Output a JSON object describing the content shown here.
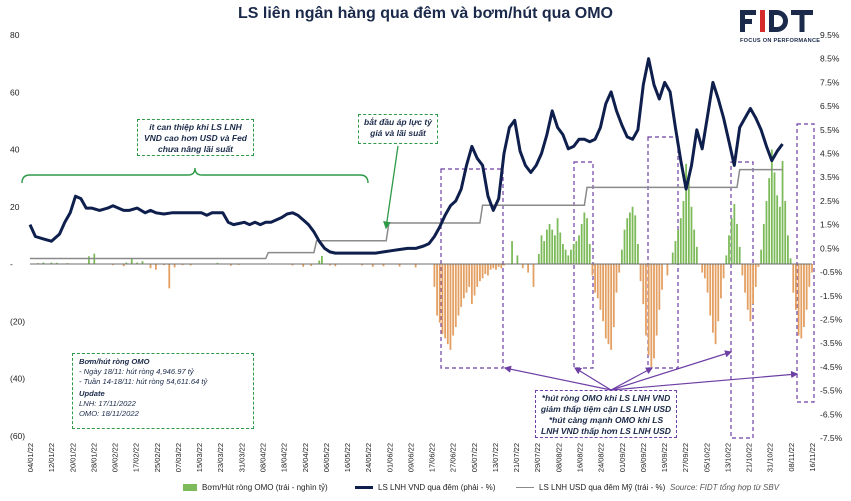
{
  "title": "LS liên ngân hàng qua đêm và bơm/hút qua OMO",
  "logo": {
    "text": "FIDT",
    "tagline": "FOCUS ON PERFORMANCE"
  },
  "colors": {
    "title": "#1b2a4a",
    "navy": "#0f1f4d",
    "gray": "#8a8a8a",
    "green_bar": "#7dbb5a",
    "orange_bar": "#e4a062",
    "green_box": "#2e9a48",
    "purple_box": "#6e3fa5",
    "brand_red": "#d52b2b"
  },
  "annotations": {
    "intervention": "ít can thiệp khi LS LNH VND cao hơn USD và Fed chưa nâng lãi suất",
    "pressure": "bắt đầu áp lực tỷ giá và lãi suất",
    "omo_note": "*hút ròng OMO khi LS LNH VND giảm thấp tiệm cận LS LNH USD *hút càng mạnh OMO khi LS LNH VND thấp hơn LS LNH USD"
  },
  "info_box": {
    "net_title": "Bơm/hút ròng OMO",
    "net_lines": [
      "- Ngày 18/11: hút ròng 4,946.97 tỷ",
      "- Tuần 14-18/11: hút ròng 54,611.64 tỷ"
    ],
    "update_title": "Update",
    "update_lines": [
      "LNH: 17/11/2022",
      "OMO: 18/11/2022"
    ]
  },
  "legend": {
    "omo": "Bơm/Hút ròng OMO (trái - nghìn tỷ)",
    "vnd": "LS LNH VND qua đêm (phải - %)",
    "usd": "LS LNH USD qua đêm Mỹ (trái - %)",
    "source": "Source: FIDT tổng hợp từ SBV"
  },
  "chart_data": {
    "type": "bar+line",
    "left_axis": {
      "ticks": [
        "80",
        "60",
        "40",
        "20",
        "-",
        "(20)",
        "(40)",
        "(60)"
      ],
      "ylim": [
        -60,
        80
      ]
    },
    "right_axis": {
      "ticks": [
        "9.5%",
        "8.5%",
        "7.5%",
        "6.5%",
        "5.5%",
        "4.5%",
        "3.5%",
        "2.5%",
        "1.5%",
        "0.5%",
        "-0.5%",
        "-1.5%",
        "-2.5%",
        "-3.5%",
        "-4.5%",
        "-5.5%",
        "-6.5%",
        "-7.5%"
      ],
      "ylim": [
        -7.5,
        9.5
      ]
    },
    "x_tick_labels": [
      "04/01/22",
      "12/01/22",
      "20/01/22",
      "28/01/22",
      "09/02/22",
      "17/02/22",
      "25/02/22",
      "07/03/22",
      "15/03/22",
      "23/03/22",
      "31/03/22",
      "08/04/22",
      "18/04/22",
      "26/04/22",
      "06/05/22",
      "16/05/22",
      "24/05/22",
      "01/06/22",
      "09/06/22",
      "17/06/22",
      "27/06/22",
      "05/07/22",
      "13/07/22",
      "21/07/22",
      "29/07/22",
      "08/08/22",
      "16/08/22",
      "24/08/22",
      "01/09/22",
      "09/09/22",
      "19/09/22",
      "27/09/22",
      "05/10/22",
      "13/10/22",
      "21/10/22",
      "31/10/22",
      "08/11/22",
      "16/11/22"
    ],
    "series_vnd": [
      [
        0,
        1.5
      ],
      [
        2,
        1.0
      ],
      [
        5,
        0.9
      ],
      [
        8,
        0.8
      ],
      [
        11,
        1.1
      ],
      [
        13,
        1.6
      ],
      [
        15,
        2.0
      ],
      [
        17,
        2.7
      ],
      [
        19,
        2.6
      ],
      [
        21,
        2.2
      ],
      [
        23,
        2.2
      ],
      [
        26,
        2.1
      ],
      [
        29,
        2.2
      ],
      [
        31,
        2.3
      ],
      [
        33,
        2.2
      ],
      [
        35,
        2.1
      ],
      [
        37,
        2.1
      ],
      [
        40,
        2.2
      ],
      [
        43,
        2.0
      ],
      [
        45,
        2.1
      ],
      [
        47,
        2.0
      ],
      [
        50,
        1.95
      ],
      [
        53,
        2.0
      ],
      [
        55,
        2.0
      ],
      [
        58,
        2.0
      ],
      [
        61,
        2.0
      ],
      [
        64,
        2.0
      ],
      [
        66,
        1.9
      ],
      [
        68,
        2.0
      ],
      [
        70,
        2.0
      ],
      [
        72,
        2.0
      ],
      [
        74,
        1.6
      ],
      [
        76,
        1.5
      ],
      [
        78,
        1.55
      ],
      [
        80,
        1.6
      ],
      [
        82,
        1.5
      ],
      [
        84,
        1.6
      ],
      [
        86,
        1.5
      ],
      [
        88,
        1.6
      ],
      [
        90,
        1.6
      ],
      [
        92,
        1.7
      ],
      [
        94,
        1.8
      ],
      [
        96,
        1.95
      ],
      [
        98,
        2.0
      ],
      [
        100,
        1.9
      ],
      [
        102,
        1.7
      ],
      [
        104,
        1.5
      ],
      [
        106,
        1.2
      ],
      [
        108,
        0.8
      ],
      [
        110,
        0.5
      ],
      [
        112,
        0.35
      ],
      [
        114,
        0.3
      ],
      [
        117,
        0.3
      ],
      [
        120,
        0.3
      ],
      [
        123,
        0.3
      ],
      [
        126,
        0.3
      ],
      [
        129,
        0.3
      ],
      [
        132,
        0.35
      ],
      [
        135,
        0.4
      ],
      [
        138,
        0.45
      ],
      [
        141,
        0.5
      ],
      [
        144,
        0.5
      ],
      [
        147,
        0.6
      ],
      [
        149,
        0.7
      ],
      [
        151,
        1.0
      ],
      [
        153,
        1.4
      ],
      [
        155,
        1.9
      ],
      [
        157,
        2.3
      ],
      [
        159,
        2.5
      ],
      [
        161,
        3.0
      ],
      [
        163,
        4.0
      ],
      [
        165,
        4.8
      ],
      [
        167,
        4.3
      ],
      [
        169,
        4.0
      ],
      [
        171,
        2.7
      ],
      [
        173,
        2.1
      ],
      [
        175,
        2.6
      ],
      [
        177,
        4.5
      ],
      [
        179,
        5.6
      ],
      [
        181,
        5.9
      ],
      [
        183,
        4.6
      ],
      [
        185,
        4.0
      ],
      [
        187,
        3.7
      ],
      [
        189,
        4.0
      ],
      [
        191,
        4.5
      ],
      [
        193,
        5.3
      ],
      [
        195,
        6.3
      ],
      [
        197,
        5.6
      ],
      [
        199,
        5.3
      ],
      [
        201,
        4.7
      ],
      [
        203,
        4.8
      ],
      [
        205,
        5.1
      ],
      [
        207,
        5.1
      ],
      [
        209,
        5.0
      ],
      [
        211,
        5.1
      ],
      [
        213,
        5.6
      ],
      [
        215,
        6.6
      ],
      [
        217,
        7.1
      ],
      [
        219,
        6.3
      ],
      [
        221,
        5.7
      ],
      [
        223,
        5.2
      ],
      [
        225,
        5.1
      ],
      [
        227,
        5.5
      ],
      [
        229,
        7.4
      ],
      [
        231,
        8.5
      ],
      [
        233,
        7.4
      ],
      [
        235,
        6.8
      ],
      [
        237,
        7.5
      ],
      [
        239,
        7.1
      ],
      [
        241,
        5.6
      ],
      [
        243,
        4.2
      ],
      [
        245,
        3.0
      ],
      [
        247,
        4.0
      ],
      [
        249,
        5.5
      ],
      [
        251,
        4.7
      ],
      [
        253,
        6.1
      ],
      [
        255,
        7.5
      ],
      [
        257,
        6.8
      ],
      [
        259,
        6.0
      ],
      [
        261,
        5.0
      ],
      [
        263,
        4.0
      ],
      [
        265,
        5.6
      ],
      [
        267,
        6.0
      ],
      [
        269,
        6.4
      ],
      [
        271,
        6.0
      ],
      [
        273,
        5.5
      ],
      [
        275,
        4.8
      ],
      [
        277,
        4.2
      ],
      [
        279,
        4.6
      ],
      [
        281,
        4.9
      ]
    ],
    "series_usd": [
      [
        0,
        0.07
      ],
      [
        88,
        0.07
      ],
      [
        89,
        0.32
      ],
      [
        106,
        0.32
      ],
      [
        107,
        0.82
      ],
      [
        133,
        0.82
      ],
      [
        134,
        1.57
      ],
      [
        168,
        1.57
      ],
      [
        169,
        2.32
      ],
      [
        207,
        2.32
      ],
      [
        208,
        3.07
      ],
      [
        264,
        3.07
      ],
      [
        265,
        3.82
      ],
      [
        281,
        3.82
      ]
    ],
    "series_omo": [
      [
        3,
        0.3
      ],
      [
        5,
        0.5
      ],
      [
        8,
        0.5
      ],
      [
        10,
        0.4
      ],
      [
        14,
        0.3
      ],
      [
        22,
        2.7
      ],
      [
        24,
        3.6
      ],
      [
        31,
        -0.4
      ],
      [
        35,
        -0.8
      ],
      [
        36,
        0.5
      ],
      [
        38,
        2.1
      ],
      [
        40,
        0.5
      ],
      [
        42,
        1.0
      ],
      [
        45,
        -1.5
      ],
      [
        47,
        -2.0
      ],
      [
        50,
        -0.4
      ],
      [
        52,
        -8.5
      ],
      [
        54,
        -1.2
      ],
      [
        57,
        -0.4
      ],
      [
        60,
        -0.5
      ],
      [
        70,
        0.4
      ],
      [
        75,
        -0.6
      ],
      [
        78,
        -0.3
      ],
      [
        98,
        -0.5
      ],
      [
        102,
        -1.0
      ],
      [
        105,
        -0.7
      ],
      [
        108,
        1.2
      ],
      [
        109,
        2.8
      ],
      [
        112,
        -0.5
      ],
      [
        114,
        -0.8
      ],
      [
        124,
        -0.5
      ],
      [
        128,
        -1.0
      ],
      [
        132,
        -0.8
      ],
      [
        138,
        -0.9
      ],
      [
        144,
        -1.2
      ],
      [
        151,
        -8.0
      ],
      [
        152,
        -18.0
      ],
      [
        153,
        -20.5
      ],
      [
        154,
        -24.5
      ],
      [
        155,
        -26.0
      ],
      [
        156,
        -28.0
      ],
      [
        157,
        -30.0
      ],
      [
        158,
        -25.0
      ],
      [
        159,
        -22.0
      ],
      [
        160,
        -18.0
      ],
      [
        161,
        -15.0
      ],
      [
        162,
        -12.0
      ],
      [
        163,
        -10.0
      ],
      [
        164,
        -8.0
      ],
      [
        165,
        -14.0
      ],
      [
        166,
        -11.0
      ],
      [
        167,
        -8.0
      ],
      [
        168,
        -6.0
      ],
      [
        169,
        -5.0
      ],
      [
        170,
        -3.5
      ],
      [
        171,
        -4.0
      ],
      [
        172,
        -2.0
      ],
      [
        173,
        -1.5
      ],
      [
        174,
        -2.0
      ],
      [
        175,
        -1.0
      ],
      [
        176,
        -1.5
      ],
      [
        177,
        -0.5
      ],
      [
        180,
        8.0
      ],
      [
        182,
        3.0
      ],
      [
        184,
        -1.5
      ],
      [
        186,
        -3.0
      ],
      [
        188,
        -8.0
      ],
      [
        190,
        3.5
      ],
      [
        191,
        10.0
      ],
      [
        192,
        8.0
      ],
      [
        193,
        12.0
      ],
      [
        194,
        14.0
      ],
      [
        195,
        12.0
      ],
      [
        196,
        10.0
      ],
      [
        197,
        16.0
      ],
      [
        198,
        11.0
      ],
      [
        199,
        7.0
      ],
      [
        200,
        5.0
      ],
      [
        201,
        3.0
      ],
      [
        202,
        5.0
      ],
      [
        203,
        7.0
      ],
      [
        204,
        8.0
      ],
      [
        205,
        10.0
      ],
      [
        206,
        14.0
      ],
      [
        207,
        18.0
      ],
      [
        208,
        16.0
      ],
      [
        209,
        7.0
      ],
      [
        210,
        -4.0
      ],
      [
        211,
        -10.0
      ],
      [
        212,
        -12.0
      ],
      [
        213,
        -16.0
      ],
      [
        214,
        -20.0
      ],
      [
        215,
        -26.0
      ],
      [
        216,
        -28.0
      ],
      [
        217,
        -30.0
      ],
      [
        218,
        -22.0
      ],
      [
        219,
        -10.0
      ],
      [
        220,
        -3.0
      ],
      [
        221,
        5.0
      ],
      [
        222,
        12.0
      ],
      [
        223,
        16.0
      ],
      [
        224,
        18.0
      ],
      [
        225,
        20.0
      ],
      [
        226,
        17.0
      ],
      [
        227,
        7.0
      ],
      [
        228,
        -6.0
      ],
      [
        229,
        -14.0
      ],
      [
        230,
        -25.0
      ],
      [
        231,
        -32.0
      ],
      [
        232,
        -36.0
      ],
      [
        233,
        -33.0
      ],
      [
        234,
        -25.0
      ],
      [
        235,
        -16.0
      ],
      [
        236,
        -9.0
      ],
      [
        238,
        -4.0
      ],
      [
        240,
        4.0
      ],
      [
        241,
        8.0
      ],
      [
        242,
        12.0
      ],
      [
        243,
        16.0
      ],
      [
        244,
        22.0
      ],
      [
        245,
        35.0
      ],
      [
        246,
        30.0
      ],
      [
        247,
        20.0
      ],
      [
        248,
        12.0
      ],
      [
        249,
        6.0
      ],
      [
        251,
        -3.0
      ],
      [
        252,
        -5.0
      ],
      [
        253,
        -10.0
      ],
      [
        254,
        -18.0
      ],
      [
        255,
        -24.0
      ],
      [
        256,
        -28.0
      ],
      [
        257,
        -20.0
      ],
      [
        258,
        -12.0
      ],
      [
        259,
        -5.0
      ],
      [
        260,
        3.0
      ],
      [
        261,
        10.0
      ],
      [
        262,
        16.0
      ],
      [
        263,
        21.0
      ],
      [
        264,
        14.0
      ],
      [
        265,
        6.0
      ],
      [
        266,
        -4.0
      ],
      [
        267,
        -10.0
      ],
      [
        268,
        -16.0
      ],
      [
        269,
        -20.0
      ],
      [
        270,
        -14.0
      ],
      [
        271,
        -8.0
      ],
      [
        272,
        -1.0
      ],
      [
        273,
        5.0
      ],
      [
        274,
        14.0
      ],
      [
        275,
        22.0
      ],
      [
        276,
        30.0
      ],
      [
        277,
        40.0
      ],
      [
        278,
        32.0
      ],
      [
        279,
        24.0
      ],
      [
        280,
        20.0
      ],
      [
        281,
        36.0
      ],
      [
        282,
        22.0
      ],
      [
        283,
        10.0
      ],
      [
        284,
        2.0
      ],
      [
        285,
        -10.0
      ],
      [
        286,
        -16.0
      ],
      [
        287,
        -25.0
      ],
      [
        288,
        -26.0
      ],
      [
        289,
        -22.0
      ],
      [
        290,
        -16.0
      ],
      [
        291,
        -8.0
      ],
      [
        292,
        -3.0
      ]
    ]
  }
}
